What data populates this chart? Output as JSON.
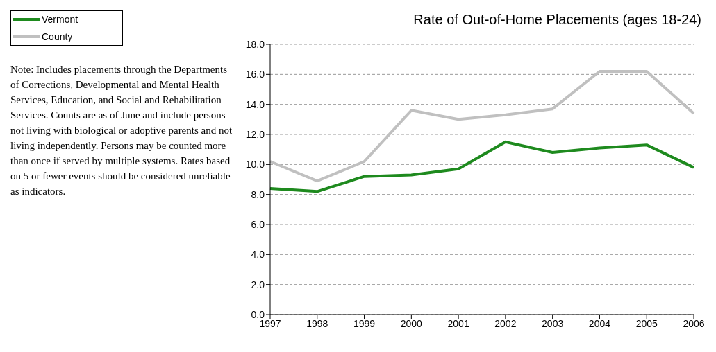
{
  "chart_data": {
    "type": "line",
    "title": "Rate of Out-of-Home Placements (ages 18-24)",
    "categories": [
      "1997",
      "1998",
      "1999",
      "2000",
      "2001",
      "2002",
      "2003",
      "2004",
      "2005",
      "2006"
    ],
    "series": [
      {
        "name": "Vermont",
        "color": "#1e8a1e",
        "values": [
          8.4,
          8.2,
          9.2,
          9.3,
          9.7,
          11.5,
          10.8,
          11.1,
          11.3,
          9.8
        ]
      },
      {
        "name": "County",
        "color": "#c0c0c0",
        "values": [
          10.2,
          8.9,
          10.2,
          13.6,
          13.0,
          13.3,
          13.7,
          16.2,
          16.2,
          13.4
        ]
      }
    ],
    "ylim": [
      0,
      18
    ],
    "yticks": [
      {
        "value": 0,
        "label": "0.0"
      },
      {
        "value": 2,
        "label": "2.0"
      },
      {
        "value": 4,
        "label": "4.0"
      },
      {
        "value": 6,
        "label": "6.0"
      },
      {
        "value": 8,
        "label": "8.0"
      },
      {
        "value": 10,
        "label": "10.0"
      },
      {
        "value": 12,
        "label": "12.0"
      },
      {
        "value": 14,
        "label": "14.0"
      },
      {
        "value": 16,
        "label": "16.0"
      },
      {
        "value": 18,
        "label": "18.0"
      }
    ],
    "grid": "y",
    "legend": "top left",
    "marker": "none",
    "line_style": "solid",
    "annotations": [
      "Note: Includes placements through the Departments of Corrections, Developmental and Mental Health Services, Education, and Social and Rehabilitation Services.  Counts are as of June and include persons not living with biological or adoptive parents and not living independently.  Persons may be counted more than once if served by multiple systems.  Rates based on 5 or fewer events should be considered unreliable as indicators."
    ]
  }
}
